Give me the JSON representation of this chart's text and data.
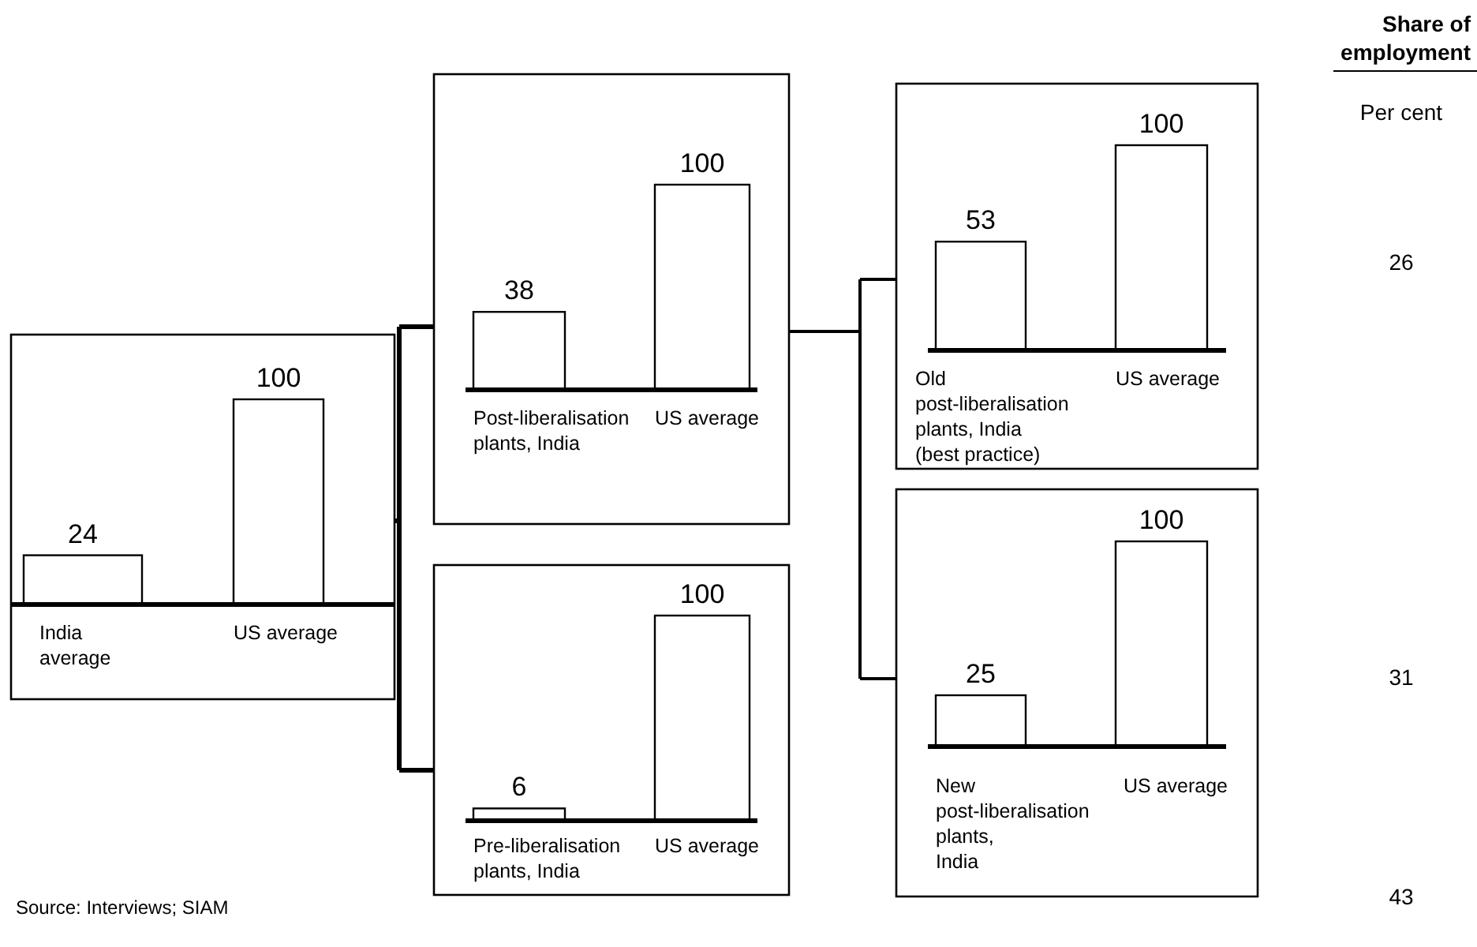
{
  "chart_data": [
    {
      "type": "bar",
      "categories": [
        "India average",
        "US average"
      ],
      "values": [
        24,
        100
      ],
      "color": "#ffffff",
      "data_labels": true,
      "annotations": [
        "Source: Interviews; SIAM"
      ]
    },
    {
      "type": "bar",
      "categories": [
        "Post-liberalisation plants, India",
        "US average"
      ],
      "values": [
        38,
        100
      ],
      "color": "#ffffff",
      "data_labels": true
    },
    {
      "type": "bar",
      "categories": [
        "Pre-liberalisation plants, India",
        "US average"
      ],
      "values": [
        6,
        100
      ],
      "color": "#ffffff",
      "data_labels": true
    },
    {
      "type": "bar",
      "categories": [
        "Old post-liberalisation plants, India (best practice)",
        "US average"
      ],
      "values": [
        53,
        100
      ],
      "color": "#ffffff",
      "data_labels": true
    },
    {
      "type": "bar",
      "categories": [
        "New post-liberalisation plants, India",
        "US average"
      ],
      "values": [
        25,
        100
      ],
      "color": "#ffffff",
      "data_labels": true
    },
    {
      "type": "other",
      "title": "Share of employment",
      "subtitle": "Per cent",
      "annotations": [
        "26",
        "31",
        "43"
      ]
    }
  ]
}
